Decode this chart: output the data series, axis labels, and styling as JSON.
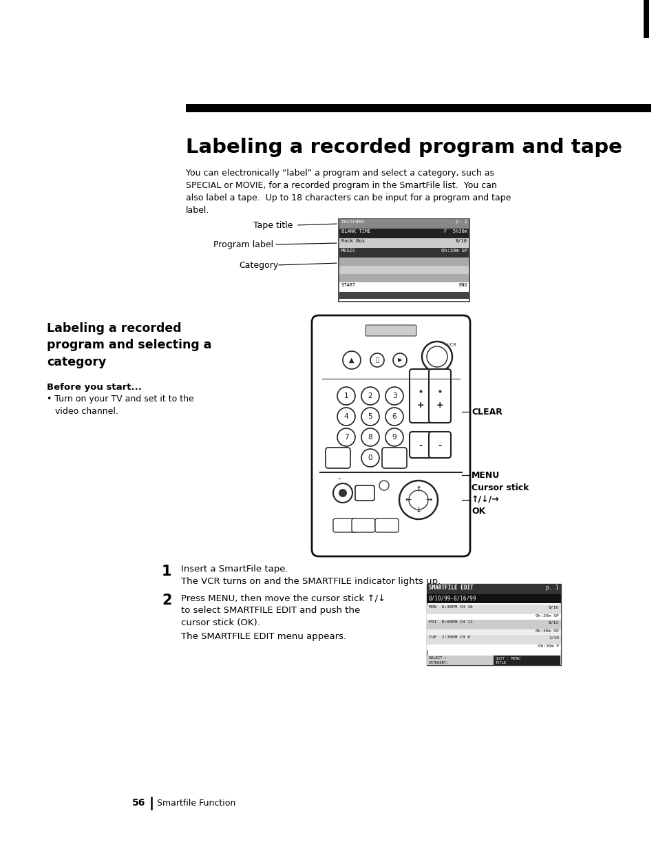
{
  "page_bg": "#ffffff",
  "title_bar_color": "#000000",
  "title_text": "Labeling a recorded program and tape",
  "intro_text": "You can electronically “label” a program and select a category, such as\nSPECIAL or MOVIE, for a recorded program in the SmartFile list.  You can\nalso label a tape.  Up to 18 characters can be input for a program and tape\nlabel.",
  "section_title": "Labeling a recorded\nprogram and selecting a\ncategory",
  "before_start": "Before you start...",
  "bullet1": "• Turn on your TV and set it to the\n   video channel.",
  "step1_num": "1",
  "step1_text": "Insert a SmartFile tape.",
  "step1_sub": "The VCR turns on and the SMARTFILE indicator lights up.",
  "step2_num": "2",
  "step2_text": "Press MENU, then move the cursor stick ↑/↓\nto select SMARTFILE EDIT and push the\ncursor stick (OK).",
  "step2_sub": "The SMARTFILE EDIT menu appears.",
  "page_num": "56",
  "page_label": "Smartfile Function",
  "tape_title_label": "Tape title",
  "program_label_label": "Program label",
  "category_label": "Category",
  "clear_label": "CLEAR",
  "menu_label": "MENU",
  "cursor_label": "Cursor stick\n↑/↓/→\nOK"
}
